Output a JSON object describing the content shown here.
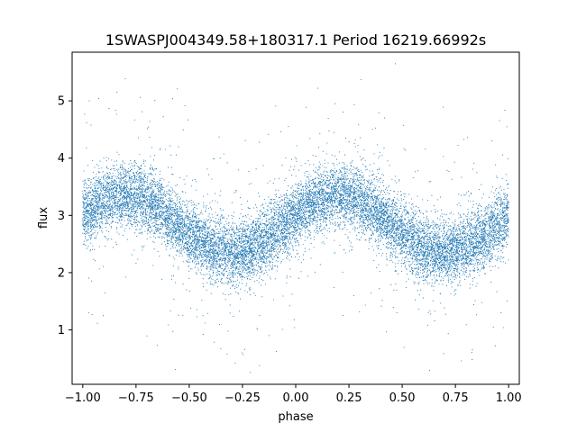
{
  "chart_data": {
    "type": "scatter",
    "title": "1SWASPJ004349.58+180317.1 Period 16219.66992s",
    "xlabel": "phase",
    "ylabel": "flux",
    "xlim": [
      -1.05,
      1.05
    ],
    "ylim": [
      0.05,
      5.85
    ],
    "x_ticks": [
      -1.0,
      -0.75,
      -0.5,
      -0.25,
      0.0,
      0.25,
      0.5,
      0.75,
      1.0
    ],
    "x_tick_labels": [
      "−1.00",
      "−0.75",
      "−0.50",
      "−0.25",
      "0.00",
      "0.25",
      "0.50",
      "0.75",
      "1.00"
    ],
    "y_ticks": [
      1,
      2,
      3,
      4,
      5
    ],
    "y_tick_labels": [
      "1",
      "2",
      "3",
      "4",
      "5"
    ],
    "grid": false,
    "marker_color": "#1f77b4",
    "series": [
      {
        "description_model": "phase-folded light curve, approximately sinusoidal, repeated over two cycles",
        "phase_range": [
          -1.0,
          1.0
        ],
        "mean_flux": 2.85,
        "amplitude": 0.5,
        "max_phase": [
          -0.8,
          0.2
        ],
        "min_phase": [
          -0.3,
          0.7
        ],
        "scatter_sigma": 0.28,
        "n_points": 14000,
        "outlier_fraction": 0.05
      }
    ]
  }
}
